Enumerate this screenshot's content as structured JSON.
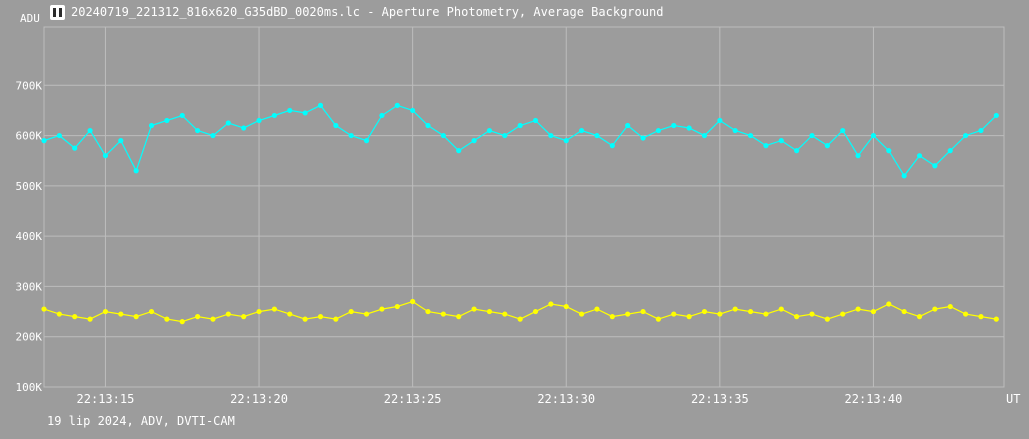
{
  "window": {
    "title": "20240719_221312_816x620_G35dBD_0020ms.lc - Aperture Photometry, Average Background",
    "icon": "lightcurve-app-icon"
  },
  "footer": {
    "text": "19 lip 2024, ADV, DVTI-CAM"
  },
  "colors": {
    "background": "#9c9c9c",
    "grid": "#bdbdbd",
    "text": "#ffffff",
    "series_upper": "#00ffff",
    "series_lower": "#ffff00"
  },
  "chart_data": {
    "type": "line",
    "title": "20240719_221312_816x620_G35dBD_0020ms.lc - Aperture Photometry, Average Background",
    "xlabel": "UT",
    "ylabel": "ADU",
    "xlim": [
      "22:13:13.00",
      "22:13:44.25"
    ],
    "ylim": [
      100000,
      800000
    ],
    "x_ticks": [
      "22:13:15",
      "22:13:20",
      "22:13:25",
      "22:13:30",
      "22:13:35",
      "22:13:40"
    ],
    "y_ticks": [
      "100K",
      "200K",
      "300K",
      "400K",
      "500K",
      "600K",
      "700K"
    ],
    "y_tick_values": [
      100000,
      200000,
      300000,
      400000,
      500000,
      600000,
      700000
    ],
    "grid": true,
    "series": [
      {
        "color": "#00ffff",
        "x": [
          "22:13:13.0",
          "22:13:13.5",
          "22:13:14.0",
          "22:13:14.5",
          "22:13:15.0",
          "22:13:15.5",
          "22:13:16.0",
          "22:13:16.5",
          "22:13:17.0",
          "22:13:17.5",
          "22:13:18.0",
          "22:13:18.5",
          "22:13:19.0",
          "22:13:19.5",
          "22:13:20.0",
          "22:13:20.5",
          "22:13:21.0",
          "22:13:21.5",
          "22:13:22.0",
          "22:13:22.5",
          "22:13:23.0",
          "22:13:23.5",
          "22:13:24.0",
          "22:13:24.5",
          "22:13:25.0",
          "22:13:25.5",
          "22:13:26.0",
          "22:13:26.5",
          "22:13:27.0",
          "22:13:27.5",
          "22:13:28.0",
          "22:13:28.5",
          "22:13:29.0",
          "22:13:29.5",
          "22:13:30.0",
          "22:13:30.5",
          "22:13:31.0",
          "22:13:31.5",
          "22:13:32.0",
          "22:13:32.5",
          "22:13:33.0",
          "22:13:33.5",
          "22:13:34.0",
          "22:13:34.5",
          "22:13:35.0",
          "22:13:35.5",
          "22:13:36.0",
          "22:13:36.5",
          "22:13:37.0",
          "22:13:37.5",
          "22:13:38.0",
          "22:13:38.5",
          "22:13:39.0",
          "22:13:39.5",
          "22:13:40.0",
          "22:13:40.5",
          "22:13:41.0",
          "22:13:41.5",
          "22:13:42.0",
          "22:13:42.5",
          "22:13:43.0",
          "22:13:43.5",
          "22:13:44.0"
        ],
        "y": [
          590000,
          600000,
          575000,
          610000,
          560000,
          590000,
          530000,
          620000,
          630000,
          640000,
          610000,
          600000,
          625000,
          615000,
          630000,
          640000,
          650000,
          645000,
          660000,
          620000,
          600000,
          590000,
          640000,
          660000,
          650000,
          620000,
          600000,
          570000,
          590000,
          610000,
          600000,
          620000,
          630000,
          600000,
          590000,
          610000,
          600000,
          580000,
          620000,
          595000,
          610000,
          620000,
          615000,
          600000,
          630000,
          610000,
          600000,
          580000,
          590000,
          570000,
          600000,
          580000,
          610000,
          560000,
          600000,
          570000,
          520000,
          560000,
          540000,
          570000,
          600000,
          610000,
          640000
        ]
      },
      {
        "color": "#ffff00",
        "x": [
          "22:13:13.0",
          "22:13:13.5",
          "22:13:14.0",
          "22:13:14.5",
          "22:13:15.0",
          "22:13:15.5",
          "22:13:16.0",
          "22:13:16.5",
          "22:13:17.0",
          "22:13:17.5",
          "22:13:18.0",
          "22:13:18.5",
          "22:13:19.0",
          "22:13:19.5",
          "22:13:20.0",
          "22:13:20.5",
          "22:13:21.0",
          "22:13:21.5",
          "22:13:22.0",
          "22:13:22.5",
          "22:13:23.0",
          "22:13:23.5",
          "22:13:24.0",
          "22:13:24.5",
          "22:13:25.0",
          "22:13:25.5",
          "22:13:26.0",
          "22:13:26.5",
          "22:13:27.0",
          "22:13:27.5",
          "22:13:28.0",
          "22:13:28.5",
          "22:13:29.0",
          "22:13:29.5",
          "22:13:30.0",
          "22:13:30.5",
          "22:13:31.0",
          "22:13:31.5",
          "22:13:32.0",
          "22:13:32.5",
          "22:13:33.0",
          "22:13:33.5",
          "22:13:34.0",
          "22:13:34.5",
          "22:13:35.0",
          "22:13:35.5",
          "22:13:36.0",
          "22:13:36.5",
          "22:13:37.0",
          "22:13:37.5",
          "22:13:38.0",
          "22:13:38.5",
          "22:13:39.0",
          "22:13:39.5",
          "22:13:40.0",
          "22:13:40.5",
          "22:13:41.0",
          "22:13:41.5",
          "22:13:42.0",
          "22:13:42.5",
          "22:13:43.0",
          "22:13:43.5",
          "22:13:44.0"
        ],
        "y": [
          255000,
          245000,
          240000,
          235000,
          250000,
          245000,
          240000,
          250000,
          235000,
          230000,
          240000,
          235000,
          245000,
          240000,
          250000,
          255000,
          245000,
          235000,
          240000,
          235000,
          250000,
          245000,
          255000,
          260000,
          270000,
          250000,
          245000,
          240000,
          255000,
          250000,
          245000,
          235000,
          250000,
          265000,
          260000,
          245000,
          255000,
          240000,
          245000,
          250000,
          235000,
          245000,
          240000,
          250000,
          245000,
          255000,
          250000,
          245000,
          255000,
          240000,
          245000,
          235000,
          245000,
          255000,
          250000,
          265000,
          250000,
          240000,
          255000,
          260000,
          245000,
          240000,
          235000
        ]
      }
    ]
  }
}
